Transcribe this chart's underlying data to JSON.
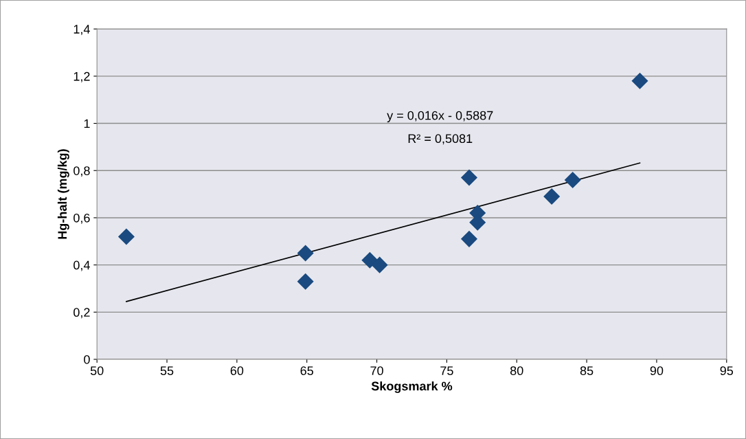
{
  "chart_data": {
    "type": "scatter",
    "xlabel": "Skogsmark %",
    "ylabel": "Hg-halt (mg/kg)",
    "series": [
      {
        "color": "#1a4a7f",
        "marker": "diamond",
        "x": [
          52.1,
          64.9,
          64.9,
          69.5,
          70.2,
          76.6,
          76.6,
          77.2,
          77.2,
          82.5,
          84.0,
          88.8
        ],
        "values": [
          0.52,
          0.45,
          0.33,
          0.42,
          0.4,
          0.77,
          0.51,
          0.62,
          0.58,
          0.69,
          0.76,
          1.18
        ]
      },
      {
        "type": "line",
        "color": "#000000",
        "marker": "none",
        "line_style": "solid",
        "x": [
          52.1,
          88.8
        ],
        "values": [
          0.245,
          0.832
        ]
      }
    ],
    "annotations": [
      "y = 0,016x - 0,5887",
      "R² = 0,5081"
    ],
    "xlim": [
      50,
      95
    ],
    "xticks": [
      50,
      55,
      60,
      65,
      70,
      75,
      80,
      85,
      90,
      95
    ],
    "ylim": [
      0,
      1.4
    ],
    "yticks": [
      {
        "value": 0,
        "label": "0"
      },
      {
        "value": 0.2,
        "label": "0,2"
      },
      {
        "value": 0.4,
        "label": "0,4"
      },
      {
        "value": 0.6,
        "label": "0,6"
      },
      {
        "value": 0.8,
        "label": "0,8"
      },
      {
        "value": 1,
        "label": "1"
      },
      {
        "value": 1.2,
        "label": "1,2"
      },
      {
        "value": 1.4,
        "label": "1,4"
      }
    ],
    "grid": "y",
    "legend": false
  }
}
